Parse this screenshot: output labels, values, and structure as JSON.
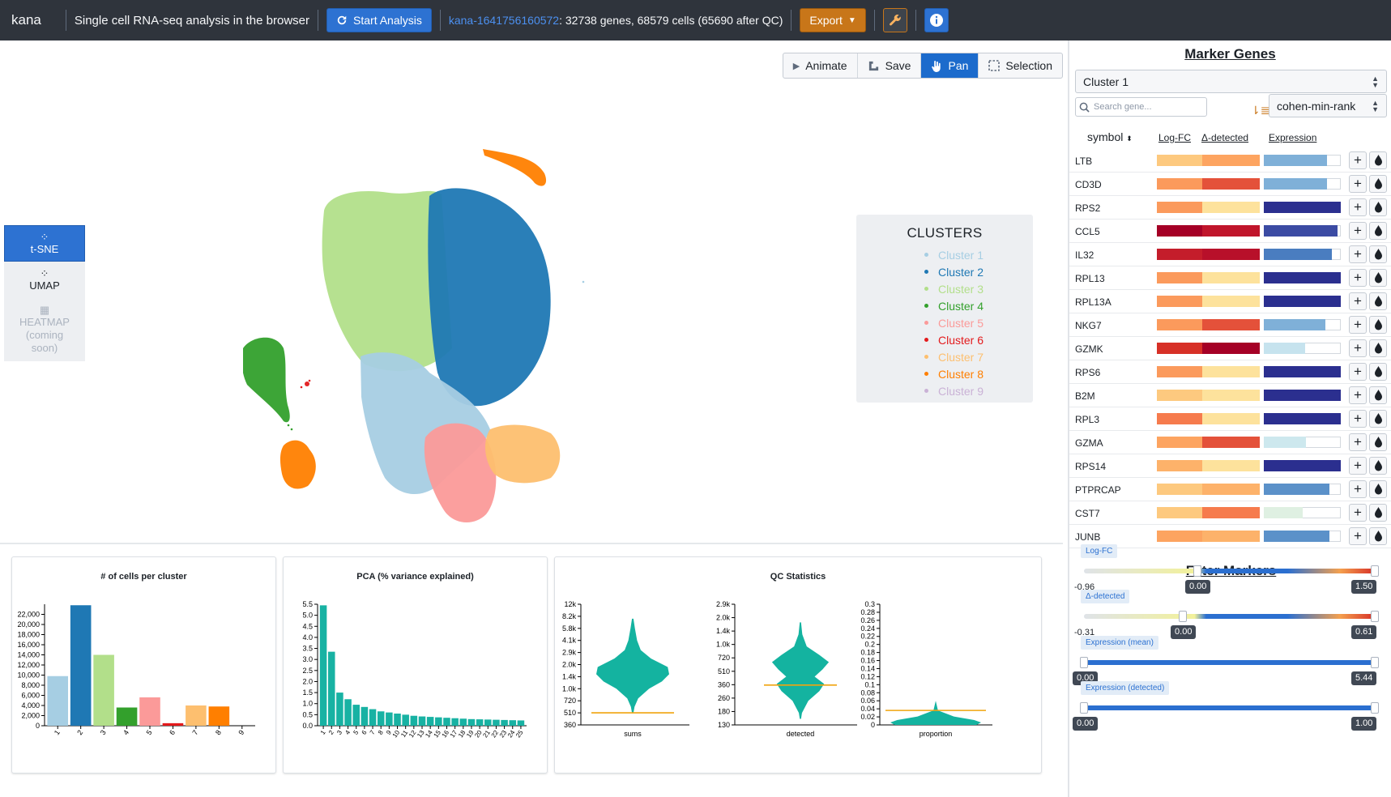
{
  "navbar": {
    "brand": "kana",
    "subtitle": "Single cell RNA-seq analysis in the browser",
    "start_label": "Start Analysis",
    "dataset_name": "kana-1641756160572",
    "dataset_info": ": 32738 genes, 68579 cells (65690 after QC)",
    "export_label": "Export"
  },
  "toolbar": {
    "animate": "Animate",
    "save": "Save",
    "pan": "Pan",
    "selection": "Selection"
  },
  "side_tabs": {
    "tsne": "t-SNE",
    "umap": "UMAP",
    "heatmap_l1": "HEATMAP",
    "heatmap_l2": "(coming",
    "heatmap_l3": "soon)"
  },
  "legend": {
    "title": "CLUSTERS",
    "items": [
      {
        "label": "Cluster 1",
        "color": "#a6cee3"
      },
      {
        "label": "Cluster 2",
        "color": "#1f78b4"
      },
      {
        "label": "Cluster 3",
        "color": "#b2df8a"
      },
      {
        "label": "Cluster 4",
        "color": "#33a02c"
      },
      {
        "label": "Cluster 5",
        "color": "#fb9a99"
      },
      {
        "label": "Cluster 6",
        "color": "#e31a1c"
      },
      {
        "label": "Cluster 7",
        "color": "#fdbf6f"
      },
      {
        "label": "Cluster 8",
        "color": "#ff7f00"
      },
      {
        "label": "Cluster 9",
        "color": "#cab2d6"
      }
    ]
  },
  "chart_data": [
    {
      "type": "bar",
      "title": "# of cells per cluster",
      "categories": [
        "1",
        "2",
        "3",
        "4",
        "5",
        "6",
        "7",
        "8",
        "9"
      ],
      "values": [
        9800,
        23800,
        14000,
        3600,
        5600,
        500,
        4000,
        3800,
        0
      ],
      "yticks": [
        "0",
        "2,000",
        "4,000",
        "6,000",
        "8,000",
        "10,000",
        "12,000",
        "14,000",
        "16,000",
        "18,000",
        "20,000",
        "22,000"
      ],
      "ylim": [
        0,
        24000
      ]
    },
    {
      "type": "bar",
      "title": "PCA (% variance explained)",
      "categories": [
        "1",
        "2",
        "3",
        "4",
        "5",
        "6",
        "7",
        "8",
        "9",
        "10",
        "11",
        "12",
        "13",
        "14",
        "15",
        "16",
        "17",
        "18",
        "19",
        "20",
        "21",
        "22",
        "23",
        "24",
        "25"
      ],
      "values": [
        5.45,
        3.35,
        1.5,
        1.2,
        0.95,
        0.85,
        0.75,
        0.65,
        0.6,
        0.55,
        0.5,
        0.45,
        0.42,
        0.4,
        0.38,
        0.36,
        0.34,
        0.32,
        0.3,
        0.29,
        0.28,
        0.27,
        0.26,
        0.25,
        0.24
      ],
      "yticks": [
        "0.0",
        "0.5",
        "1.0",
        "1.5",
        "2.0",
        "2.5",
        "3.0",
        "3.5",
        "4.0",
        "4.5",
        "5.0",
        "5.5"
      ],
      "ylim": [
        0,
        5.5
      ]
    },
    {
      "type": "violin",
      "title": "QC Statistics",
      "panels": [
        {
          "label": "sums",
          "yticks": [
            "360",
            "510",
            "720",
            "1.0k",
            "1.4k",
            "2.0k",
            "2.9k",
            "4.1k",
            "5.8k",
            "8.2k",
            "12k"
          ],
          "threshold": "510"
        },
        {
          "label": "detected",
          "yticks": [
            "130",
            "180",
            "260",
            "360",
            "510",
            "720",
            "1.0k",
            "1.4k",
            "2.0k",
            "2.9k"
          ],
          "threshold": "310"
        },
        {
          "label": "proportion",
          "yticks": [
            "0",
            "0.02",
            "0.04",
            "0.06",
            "0.08",
            "0.1",
            "0.12",
            "0.14",
            "0.16",
            "0.18",
            "0.2",
            "0.22",
            "0.24",
            "0.26",
            "0.28",
            "0.3"
          ],
          "threshold": "0.035"
        }
      ]
    }
  ],
  "markers": {
    "title": "Marker Genes",
    "cluster_select": "Cluster 1",
    "search_placeholder": "Search gene...",
    "rank_select": "cohen-min-rank",
    "col_symbol": "symbol",
    "col_logfc": "Log-FC",
    "col_delta": "Δ-detected",
    "col_expr": "Expression",
    "rows": [
      {
        "gene": "LTB",
        "logfc": "#fdc97f",
        "delta": "#fda460",
        "expr": 0.82,
        "expr_color": "#7fb0d8"
      },
      {
        "gene": "CD3D",
        "logfc": "#fb9a5c",
        "delta": "#e4513a",
        "expr": 0.82,
        "expr_color": "#7fb0d8"
      },
      {
        "gene": "RPS2",
        "logfc": "#fb9a5c",
        "delta": "#fde29c",
        "expr": 1.0,
        "expr_color": "#2b2f8f"
      },
      {
        "gene": "CCL5",
        "logfc": "#a50026",
        "delta": "#c0152b",
        "expr": 0.96,
        "expr_color": "#3b4ba3"
      },
      {
        "gene": "IL32",
        "logfc": "#c41d2b",
        "delta": "#b8102a",
        "expr": 0.88,
        "expr_color": "#4a7dc0"
      },
      {
        "gene": "RPL13",
        "logfc": "#fb9a5c",
        "delta": "#fde29c",
        "expr": 1.0,
        "expr_color": "#2b2f8f"
      },
      {
        "gene": "RPL13A",
        "logfc": "#fb9a5c",
        "delta": "#fde29c",
        "expr": 1.0,
        "expr_color": "#2b2f8f"
      },
      {
        "gene": "NKG7",
        "logfc": "#fb9a5c",
        "delta": "#e4513a",
        "expr": 0.8,
        "expr_color": "#7fb0d8"
      },
      {
        "gene": "GZMK",
        "logfc": "#d73027",
        "delta": "#a50026",
        "expr": 0.54,
        "expr_color": "#c6e3ee"
      },
      {
        "gene": "RPS6",
        "logfc": "#fb9a5c",
        "delta": "#fde29c",
        "expr": 1.0,
        "expr_color": "#2b2f8f"
      },
      {
        "gene": "B2M",
        "logfc": "#fdc97f",
        "delta": "#fde29c",
        "expr": 1.0,
        "expr_color": "#2b2f8f"
      },
      {
        "gene": "RPL3",
        "logfc": "#f67b4d",
        "delta": "#fde29c",
        "expr": 1.0,
        "expr_color": "#2b2f8f"
      },
      {
        "gene": "GZMA",
        "logfc": "#fda460",
        "delta": "#e4513a",
        "expr": 0.55,
        "expr_color": "#cde8ee"
      },
      {
        "gene": "RPS14",
        "logfc": "#fdb26a",
        "delta": "#fde29c",
        "expr": 1.0,
        "expr_color": "#2b2f8f"
      },
      {
        "gene": "PTPRCAP",
        "logfc": "#fdc97f",
        "delta": "#fdb26a",
        "expr": 0.85,
        "expr_color": "#5b91c9"
      },
      {
        "gene": "CST7",
        "logfc": "#fdc97f",
        "delta": "#f67b4d",
        "expr": 0.5,
        "expr_color": "#dff0e2"
      },
      {
        "gene": "JUNB",
        "logfc": "#fda460",
        "delta": "#fdb26a",
        "expr": 0.85,
        "expr_color": "#5b91c9"
      }
    ]
  },
  "filters": {
    "title": "Filter Markers",
    "items": [
      {
        "label": "Log-FC",
        "min": "-0.96",
        "value": "0.00",
        "max": "1.50",
        "level": 0.39
      },
      {
        "label": "Δ-detected",
        "min": "-0.31",
        "value": "0.00",
        "max": "0.61",
        "level": 0.34
      },
      {
        "label": "Expression (mean)",
        "value": "0.00",
        "max": "5.44",
        "level": 0.0
      },
      {
        "label": "Expression (detected)",
        "value": "0.00",
        "max": "1.00",
        "level": 0.0
      }
    ]
  }
}
